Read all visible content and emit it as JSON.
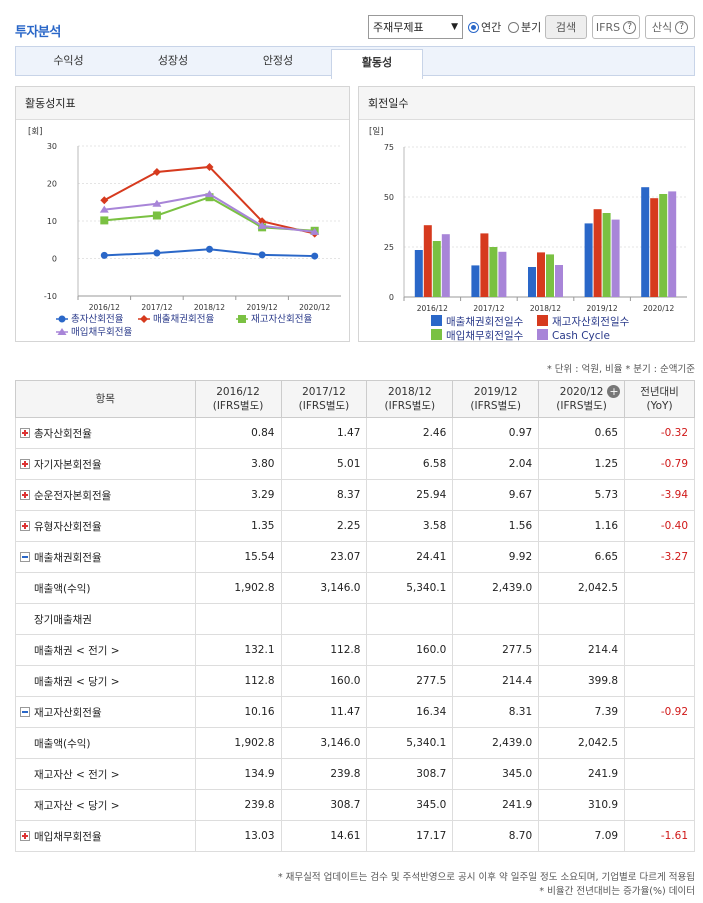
{
  "header": {
    "title": "투자분석"
  },
  "controls": {
    "select_value": "주재무제표",
    "radio_annual": "연간",
    "radio_quarter": "분기",
    "search_btn": "검색",
    "ifrs_btn": "IFRS",
    "formula_btn": "산식",
    "help_glyph": "?"
  },
  "tabs": [
    "수익성",
    "성장성",
    "안정성",
    "활동성"
  ],
  "active_tab": 3,
  "chart_left": {
    "panel_title": "활동성지표",
    "unit_label": "[회]",
    "chart_data": {
      "type": "line",
      "categories": [
        "2016/12",
        "2017/12",
        "2018/12",
        "2019/12",
        "2020/12"
      ],
      "ylim": [
        -10,
        30
      ],
      "yticks": [
        "30",
        "20",
        "10",
        "0",
        "-10"
      ],
      "series": [
        {
          "name": "총자산회전율",
          "values": [
            0.84,
            1.47,
            2.46,
            0.97,
            0.65
          ],
          "color": "#2a67c8"
        },
        {
          "name": "매출채권회전율",
          "values": [
            15.54,
            23.07,
            24.41,
            9.92,
            6.65
          ],
          "color": "#d63a1e"
        },
        {
          "name": "재고자산회전율",
          "values": [
            10.16,
            11.47,
            16.34,
            8.31,
            7.39
          ],
          "color": "#7ac142"
        },
        {
          "name": "매입채무회전율",
          "values": [
            13.03,
            14.61,
            17.17,
            8.7,
            7.09
          ],
          "color": "#a885d8"
        }
      ]
    }
  },
  "chart_right": {
    "panel_title": "회전일수",
    "unit_label": "[일]",
    "chart_data": {
      "type": "bar",
      "categories": [
        "2016/12",
        "2017/12",
        "2018/12",
        "2019/12",
        "2020/12"
      ],
      "ylim": [
        0,
        75
      ],
      "yticks": [
        "75",
        "50",
        "25",
        "0"
      ],
      "series": [
        {
          "name": "매출채권회전일수",
          "values": [
            23.5,
            15.8,
            15.0,
            36.8,
            54.9
          ],
          "color": "#2a67c8"
        },
        {
          "name": "재고자산회전일수",
          "values": [
            35.9,
            31.8,
            22.3,
            43.9,
            49.4
          ],
          "color": "#d63a1e"
        },
        {
          "name": "매입채무회전일수",
          "values": [
            28.0,
            25.0,
            21.3,
            42.0,
            51.5
          ],
          "color": "#7ac142"
        },
        {
          "name": "Cash Cycle",
          "values": [
            31.4,
            22.6,
            16.0,
            38.7,
            52.8
          ],
          "color": "#a885d8"
        }
      ]
    }
  },
  "unit_note": "* 단위 : 억원, 비율   * 분기 : 순액기준",
  "table": {
    "headers": [
      {
        "l1": "항목",
        "l2": ""
      },
      {
        "l1": "2016/12",
        "l2": "(IFRS별도)"
      },
      {
        "l1": "2017/12",
        "l2": "(IFRS별도)"
      },
      {
        "l1": "2018/12",
        "l2": "(IFRS별도)"
      },
      {
        "l1": "2019/12",
        "l2": "(IFRS별도)"
      },
      {
        "l1": "2020/12",
        "l2": "(IFRS별도)"
      },
      {
        "l1": "전년대비",
        "l2": "(YoY)"
      }
    ],
    "rows": [
      {
        "label": "총자산회전율",
        "kind": "plus",
        "vals": [
          "0.84",
          "1.47",
          "2.46",
          "0.97",
          "0.65"
        ],
        "yoy": "-0.32"
      },
      {
        "label": "자기자본회전율",
        "kind": "plus",
        "vals": [
          "3.80",
          "5.01",
          "6.58",
          "2.04",
          "1.25"
        ],
        "yoy": "-0.79"
      },
      {
        "label": "순운전자본회전율",
        "kind": "plus",
        "vals": [
          "3.29",
          "8.37",
          "25.94",
          "9.67",
          "5.73"
        ],
        "yoy": "-3.94"
      },
      {
        "label": "유형자산회전율",
        "kind": "plus",
        "vals": [
          "1.35",
          "2.25",
          "3.58",
          "1.56",
          "1.16"
        ],
        "yoy": "-0.40"
      },
      {
        "label": "매출채권회전율",
        "kind": "minus",
        "vals": [
          "15.54",
          "23.07",
          "24.41",
          "9.92",
          "6.65"
        ],
        "yoy": "-3.27"
      },
      {
        "label": "매출액(수익)",
        "kind": "sub",
        "vals": [
          "1,902.8",
          "3,146.0",
          "5,340.1",
          "2,439.0",
          "2,042.5"
        ],
        "yoy": ""
      },
      {
        "label": "장기매출채권",
        "kind": "sub",
        "vals": [
          "",
          "",
          "",
          "",
          ""
        ],
        "yoy": ""
      },
      {
        "label": "매출채권 < 전기 >",
        "kind": "sub",
        "vals": [
          "132.1",
          "112.8",
          "160.0",
          "277.5",
          "214.4"
        ],
        "yoy": ""
      },
      {
        "label": "매출채권 < 당기 >",
        "kind": "sub",
        "vals": [
          "112.8",
          "160.0",
          "277.5",
          "214.4",
          "399.8"
        ],
        "yoy": ""
      },
      {
        "label": "재고자산회전율",
        "kind": "minus",
        "vals": [
          "10.16",
          "11.47",
          "16.34",
          "8.31",
          "7.39"
        ],
        "yoy": "-0.92"
      },
      {
        "label": "매출액(수익)",
        "kind": "sub",
        "vals": [
          "1,902.8",
          "3,146.0",
          "5,340.1",
          "2,439.0",
          "2,042.5"
        ],
        "yoy": ""
      },
      {
        "label": "재고자산 < 전기 >",
        "kind": "sub",
        "vals": [
          "134.9",
          "239.8",
          "308.7",
          "345.0",
          "241.9"
        ],
        "yoy": ""
      },
      {
        "label": "재고자산 < 당기 >",
        "kind": "sub",
        "vals": [
          "239.8",
          "308.7",
          "345.0",
          "241.9",
          "310.9"
        ],
        "yoy": ""
      },
      {
        "label": "매입채무회전율",
        "kind": "plus",
        "vals": [
          "13.03",
          "14.61",
          "17.17",
          "8.70",
          "7.09"
        ],
        "yoy": "-1.61"
      }
    ]
  },
  "footnotes": [
    "* 재무실적 업데이트는 검수 및 주석반영으로 공시 이후 약 일주일 정도 소요되며, 기업별로 다르게 적용됩",
    "* 비율간 전년대비는 증가율(%) 데이터"
  ]
}
